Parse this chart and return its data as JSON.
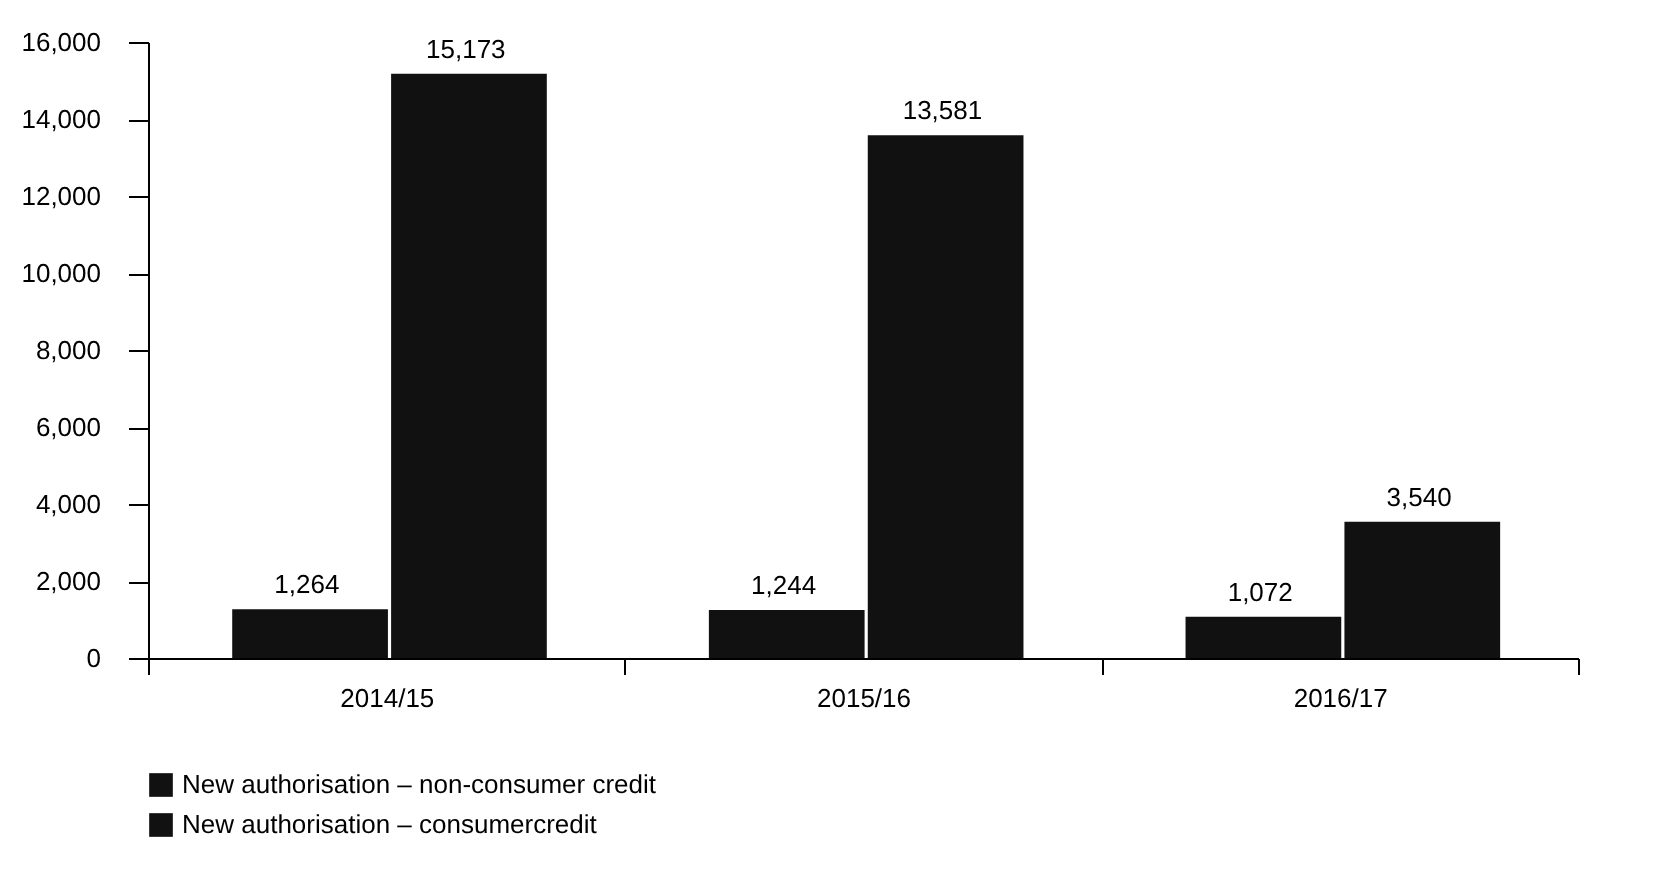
{
  "chart_data": {
    "type": "bar",
    "categories": [
      "2014/15",
      "2015/16",
      "2016/17"
    ],
    "series": [
      {
        "name": "New authorisation – non-consumer credit",
        "color": "#111111",
        "values": [
          1264,
          1244,
          1072
        ],
        "value_labels": [
          "1,264",
          "1,244",
          "1,072"
        ]
      },
      {
        "name": "New authorisation – consumercredit",
        "color": "#111111",
        "values": [
          15173,
          13581,
          3540
        ],
        "value_labels": [
          "15,173",
          "13,581",
          "3,540"
        ]
      }
    ],
    "ylim": [
      0,
      16000
    ],
    "yticks": [
      0,
      {
        "value": 2000,
        "label": "2,000"
      },
      {
        "value": 4000,
        "label": "4,000"
      },
      {
        "value": 6000,
        "label": "6,000"
      },
      {
        "value": 8000,
        "label": "8,000"
      },
      {
        "value": 10000,
        "label": "10,000"
      },
      {
        "value": 12000,
        "label": "12,000"
      },
      {
        "value": 14000,
        "label": "14,000"
      },
      {
        "value": 16000,
        "label": "16,000"
      }
    ],
    "legend": "bottom",
    "grid": false
  }
}
